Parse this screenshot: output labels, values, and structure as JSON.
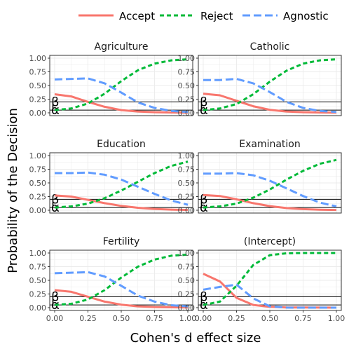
{
  "chart_data": {
    "type": "line",
    "ylabel": "Probability of the Decision",
    "xlabel": "Cohen's d effect size",
    "xlim": [
      0,
      1
    ],
    "ylim": [
      0,
      1
    ],
    "x_ticks": [
      "0.00",
      "0.25",
      "0.50",
      "0.75",
      "1.00"
    ],
    "y_ticks": [
      "0.00",
      "0.25",
      "0.50",
      "0.75",
      "1.00"
    ],
    "legend": {
      "placement": "top",
      "entries": [
        "Accept",
        "Reject",
        "Agnostic"
      ]
    },
    "colors": {
      "Accept": "#F8766D",
      "Reject": "#00BA38",
      "Agnostic": "#619CFF"
    },
    "reference_lines": [
      {
        "label": "β",
        "y": 0.2
      },
      {
        "label": "α",
        "y": 0.05
      }
    ],
    "x": [
      0.0,
      0.125,
      0.25,
      0.375,
      0.5,
      0.625,
      0.75,
      0.875,
      1.0
    ],
    "panels": [
      {
        "title": "Agriculture",
        "series": [
          {
            "name": "Accept",
            "values": [
              0.34,
              0.3,
              0.2,
              0.11,
              0.05,
              0.025,
              0.012,
              0.006,
              0.004
            ]
          },
          {
            "name": "Reject",
            "values": [
              0.05,
              0.08,
              0.17,
              0.35,
              0.58,
              0.78,
              0.9,
              0.96,
              0.98
            ]
          },
          {
            "name": "Agnostic",
            "values": [
              0.61,
              0.62,
              0.63,
              0.54,
              0.37,
              0.19,
              0.09,
              0.035,
              0.015
            ]
          }
        ]
      },
      {
        "title": "Catholic",
        "series": [
          {
            "name": "Accept",
            "values": [
              0.35,
              0.32,
              0.22,
              0.12,
              0.055,
              0.025,
              0.012,
              0.006,
              0.004
            ]
          },
          {
            "name": "Reject",
            "values": [
              0.05,
              0.08,
              0.16,
              0.34,
              0.57,
              0.77,
              0.9,
              0.96,
              0.98
            ]
          },
          {
            "name": "Agnostic",
            "values": [
              0.6,
              0.6,
              0.62,
              0.54,
              0.38,
              0.2,
              0.09,
              0.035,
              0.015
            ]
          }
        ]
      },
      {
        "title": "Education",
        "series": [
          {
            "name": "Accept",
            "values": [
              0.27,
              0.25,
              0.19,
              0.13,
              0.08,
              0.045,
              0.025,
              0.012,
              0.005
            ]
          },
          {
            "name": "Reject",
            "values": [
              0.05,
              0.07,
              0.12,
              0.22,
              0.36,
              0.52,
              0.68,
              0.81,
              0.89
            ]
          },
          {
            "name": "Agnostic",
            "values": [
              0.68,
              0.68,
              0.69,
              0.65,
              0.56,
              0.43,
              0.3,
              0.18,
              0.1
            ]
          }
        ]
      },
      {
        "title": "Examination",
        "series": [
          {
            "name": "Accept",
            "values": [
              0.28,
              0.26,
              0.2,
              0.13,
              0.075,
              0.04,
              0.02,
              0.01,
              0.005
            ]
          },
          {
            "name": "Reject",
            "values": [
              0.05,
              0.07,
              0.12,
              0.23,
              0.38,
              0.56,
              0.72,
              0.85,
              0.92
            ]
          },
          {
            "name": "Agnostic",
            "values": [
              0.67,
              0.67,
              0.68,
              0.64,
              0.54,
              0.4,
              0.26,
              0.14,
              0.07
            ]
          }
        ]
      },
      {
        "title": "Fertility",
        "series": [
          {
            "name": "Accept",
            "values": [
              0.32,
              0.29,
              0.2,
              0.11,
              0.055,
              0.025,
              0.012,
              0.006,
              0.004
            ]
          },
          {
            "name": "Reject",
            "values": [
              0.05,
              0.07,
              0.15,
              0.32,
              0.55,
              0.75,
              0.88,
              0.95,
              0.97
            ]
          },
          {
            "name": "Agnostic",
            "values": [
              0.63,
              0.64,
              0.65,
              0.57,
              0.4,
              0.22,
              0.11,
              0.045,
              0.025
            ]
          }
        ]
      },
      {
        "title": "(Intercept)",
        "series": [
          {
            "name": "Accept",
            "values": [
              0.62,
              0.48,
              0.18,
              0.05,
              0.015,
              0.004,
              0.002,
              0.001,
              0.0
            ]
          },
          {
            "name": "Reject",
            "values": [
              0.05,
              0.11,
              0.4,
              0.78,
              0.96,
              0.995,
              1.0,
              1.0,
              1.0
            ]
          },
          {
            "name": "Agnostic",
            "values": [
              0.33,
              0.38,
              0.42,
              0.17,
              0.025,
              0.001,
              0.0,
              0.0,
              0.0
            ]
          }
        ]
      }
    ]
  }
}
